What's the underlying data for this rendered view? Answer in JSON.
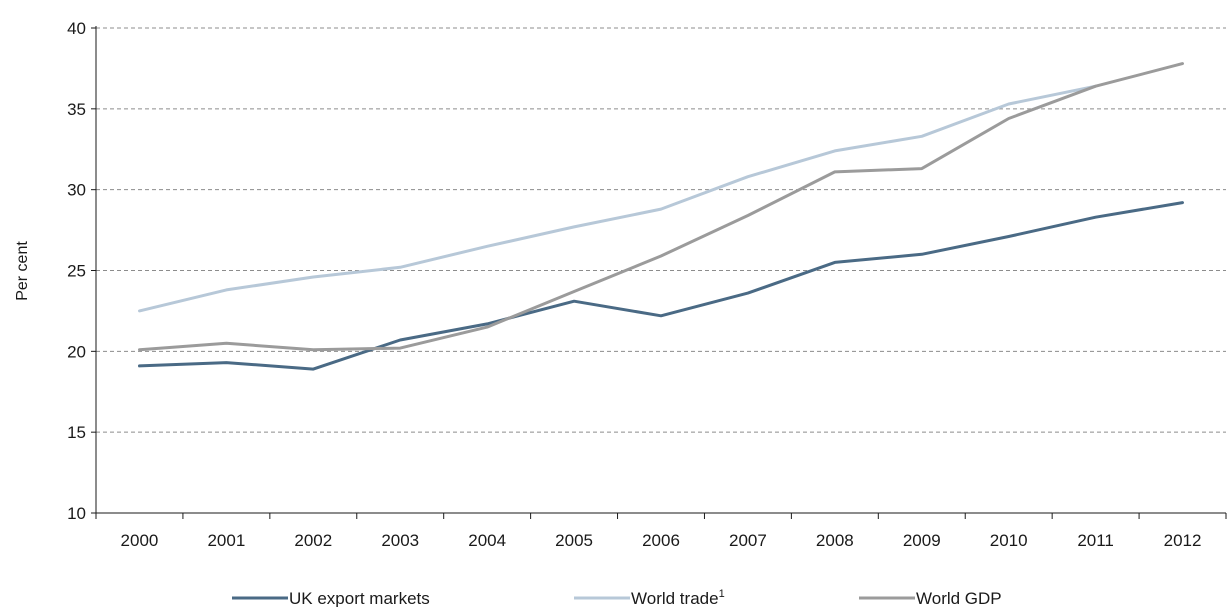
{
  "chart_data": {
    "type": "line",
    "ylabel": "Per cent",
    "xlabel": "",
    "ylim": [
      10,
      40
    ],
    "yticks": [
      10,
      15,
      20,
      25,
      30,
      35,
      40
    ],
    "grid": true,
    "legend_position": "bottom",
    "categories": [
      "2000",
      "2001",
      "2002",
      "2003",
      "2004",
      "2005",
      "2006",
      "2007",
      "2008",
      "2009",
      "2010",
      "2011",
      "2012"
    ],
    "series": [
      {
        "name": "UK export markets",
        "color": "#4a6a85",
        "values": [
          19.1,
          19.3,
          18.9,
          20.7,
          21.7,
          23.1,
          22.2,
          23.6,
          25.5,
          26.0,
          27.1,
          28.3,
          29.2
        ]
      },
      {
        "name": "World trade",
        "superscript": "1",
        "color": "#b7c8d8",
        "values": [
          22.5,
          23.8,
          24.6,
          25.2,
          26.5,
          27.7,
          28.8,
          30.8,
          32.4,
          33.3,
          35.3,
          36.4,
          null
        ]
      },
      {
        "name": "World GDP",
        "color": "#9b9b9b",
        "values": [
          20.1,
          20.5,
          20.1,
          20.2,
          21.5,
          23.7,
          25.9,
          28.4,
          31.1,
          31.3,
          34.4,
          36.4,
          37.8
        ]
      }
    ]
  }
}
